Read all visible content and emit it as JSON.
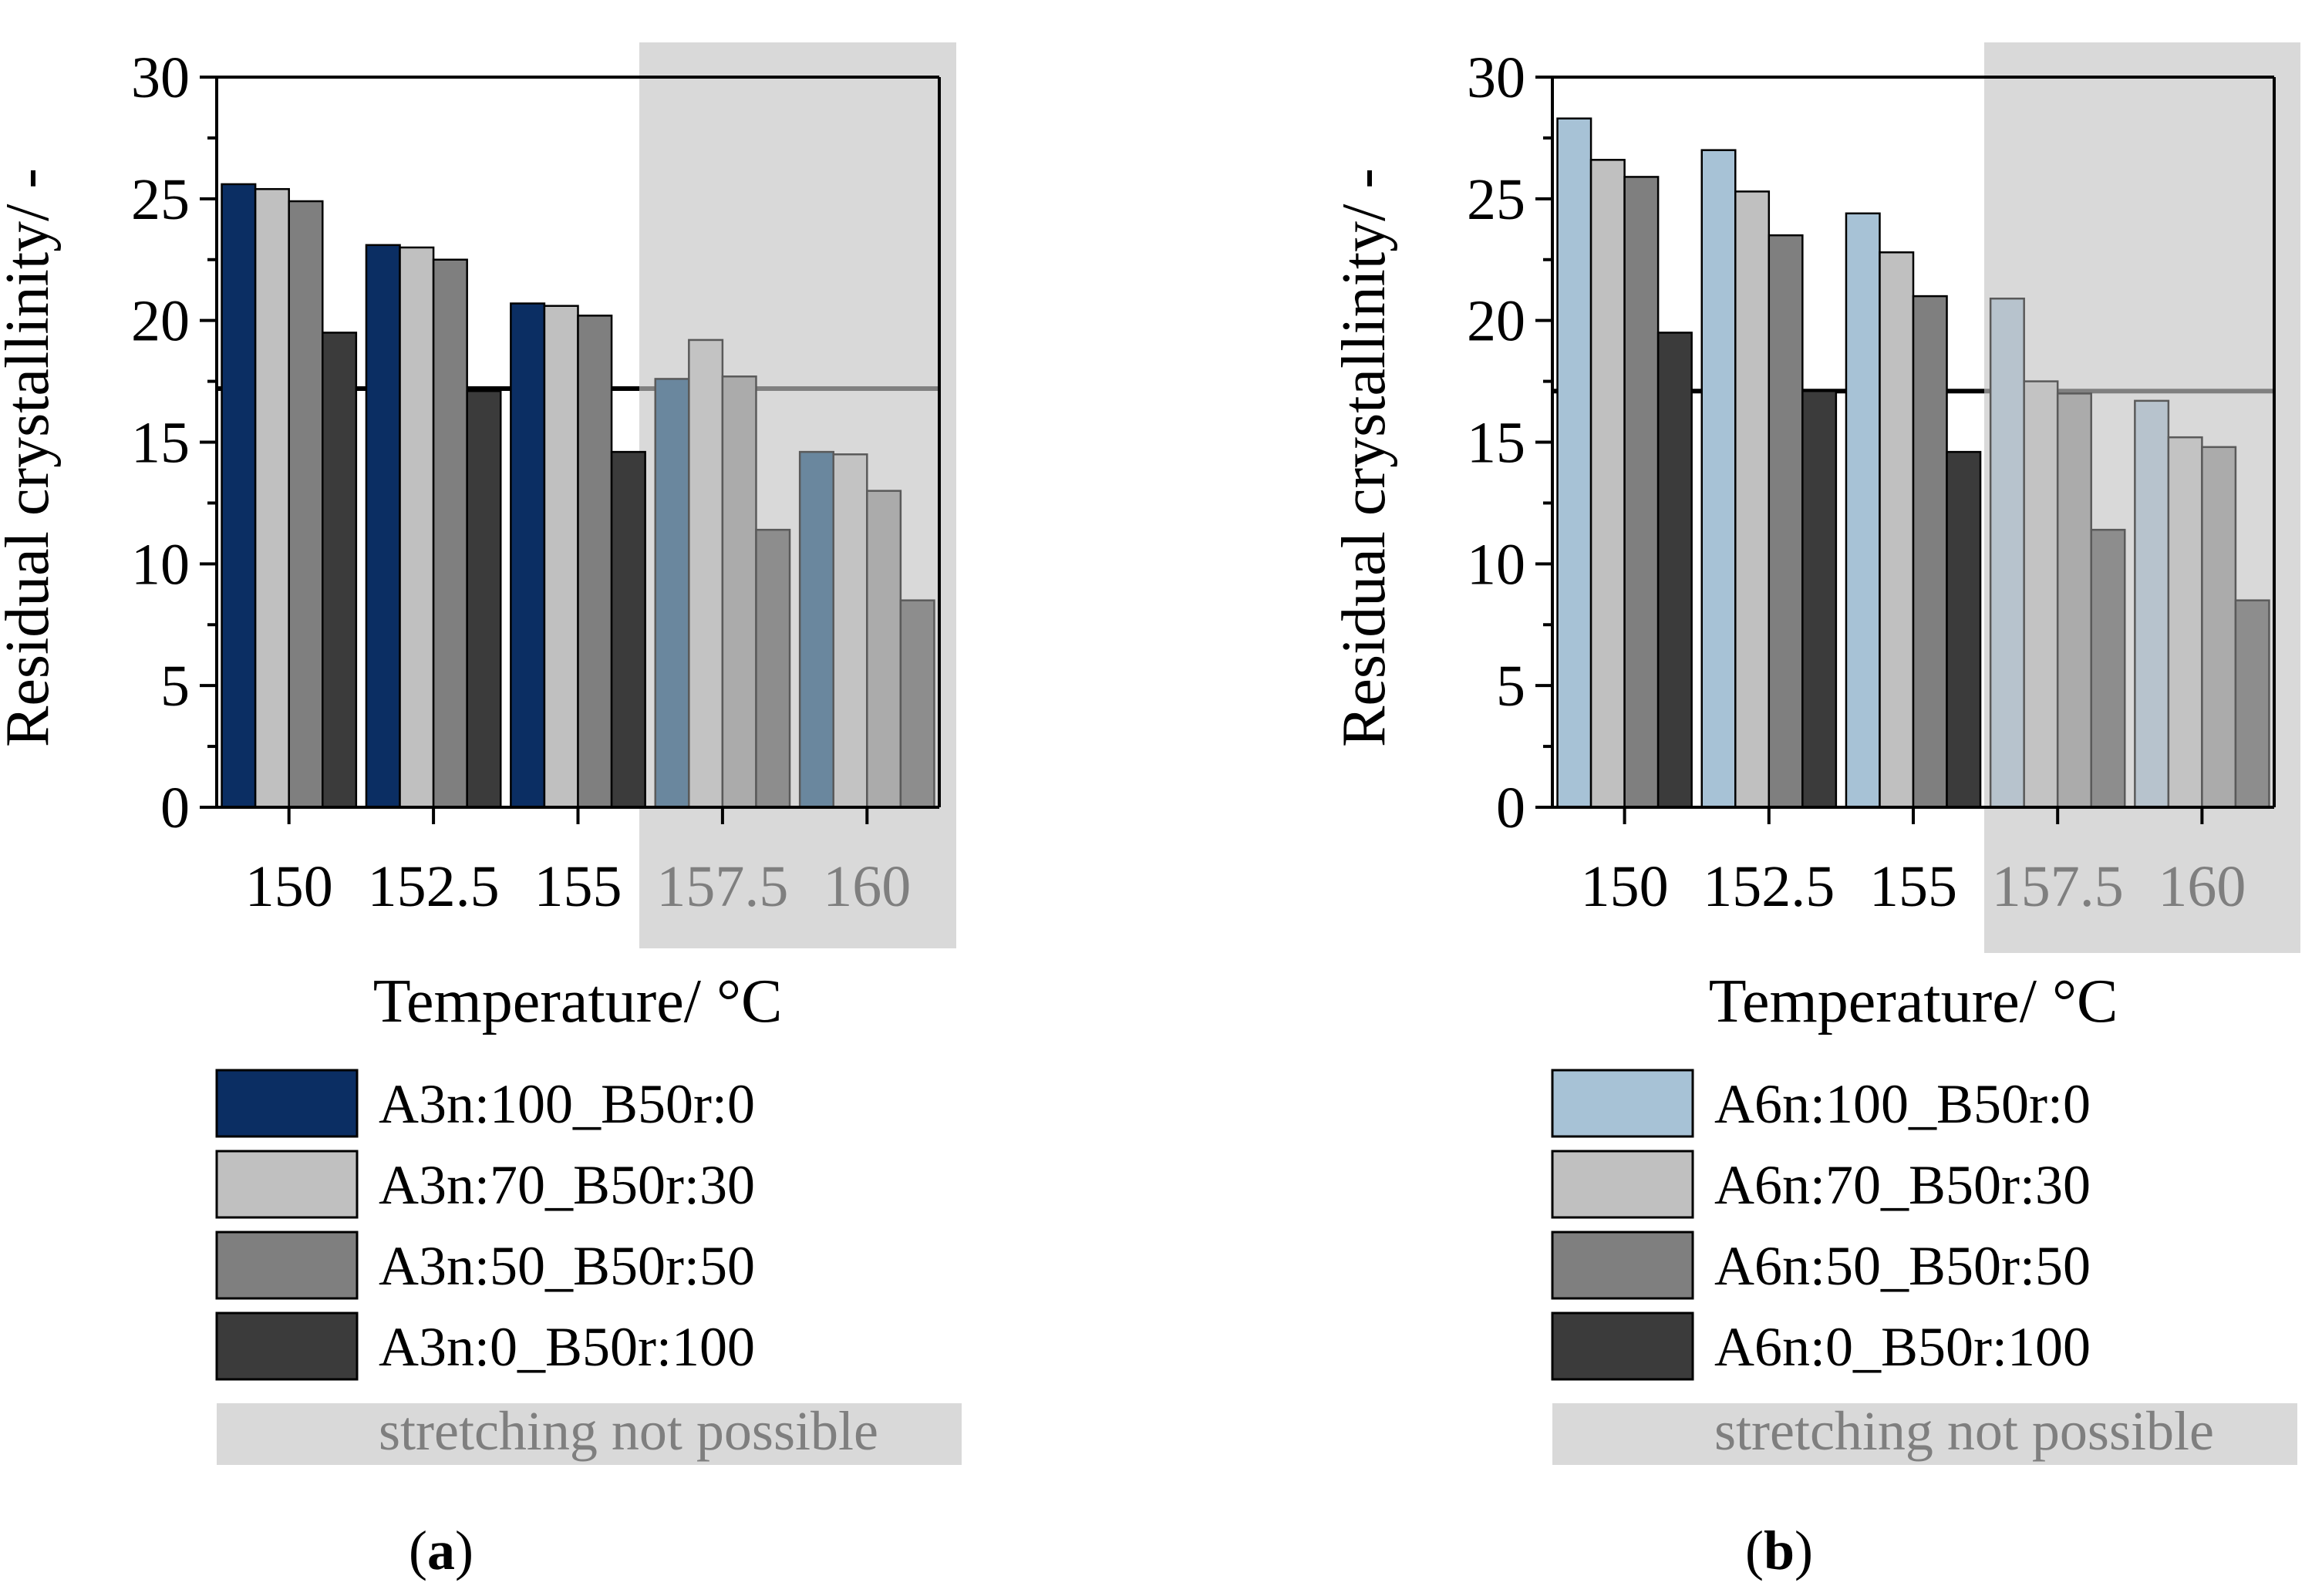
{
  "chart_data": [
    {
      "type": "bar",
      "panel_label": "(a)",
      "panel_letter": "a",
      "xlabel": "Temperature/ °C",
      "ylabel": "Residual crystallinity/ -",
      "ylim": [
        0,
        30
      ],
      "yticks": [
        0,
        5,
        10,
        15,
        20,
        25,
        30
      ],
      "categories": [
        "150",
        "152.5",
        "155",
        "157.5",
        "160"
      ],
      "shaded_from_index": 3,
      "shaded_legend": "stretching not possible",
      "reference_line": 17.2,
      "series": [
        {
          "name": "A3n:100_B50r:0",
          "color": "#0b2e63",
          "shaded_color": "#6a879e",
          "values": [
            25.6,
            23.1,
            20.7,
            17.6,
            14.6
          ]
        },
        {
          "name": "A3n:70_B50r:30",
          "color": "#c0c0c0",
          "shaded_color": "#c3c3c3",
          "values": [
            25.4,
            23.0,
            20.6,
            19.2,
            14.5
          ]
        },
        {
          "name": "A3n:50_B50r:50",
          "color": "#7f7f7f",
          "shaded_color": "#ababab",
          "values": [
            24.9,
            22.5,
            20.2,
            17.7,
            13.0
          ]
        },
        {
          "name": "A3n:0_B50r:100",
          "color": "#3b3b3b",
          "shaded_color": "#8d8d8d",
          "values": [
            19.5,
            17.1,
            14.6,
            11.4,
            8.5
          ]
        }
      ]
    },
    {
      "type": "bar",
      "panel_label": "(b)",
      "panel_letter": "b",
      "xlabel": "Temperature/ °C",
      "ylabel": "Residual crystallinity/ -",
      "ylim": [
        0,
        30
      ],
      "yticks": [
        0,
        5,
        10,
        15,
        20,
        25,
        30
      ],
      "categories": [
        "150",
        "152.5",
        "155",
        "157.5",
        "160"
      ],
      "shaded_from_index": 3,
      "shaded_legend": "stretching not possible",
      "reference_line": 17.1,
      "series": [
        {
          "name": "A6n:100_B50r:0",
          "color": "#a7c2d6",
          "shaded_color": "#b7c3cd",
          "values": [
            28.3,
            27.0,
            24.4,
            20.9,
            16.7
          ]
        },
        {
          "name": "A6n:70_B50r:30",
          "color": "#c0c0c0",
          "shaded_color": "#c3c3c3",
          "values": [
            26.6,
            25.3,
            22.8,
            17.5,
            15.2
          ]
        },
        {
          "name": "A6n:50_B50r:50",
          "color": "#7f7f7f",
          "shaded_color": "#ababab",
          "values": [
            25.9,
            23.5,
            21.0,
            17.0,
            14.8
          ]
        },
        {
          "name": "A6n:0_B50r:100",
          "color": "#3b3b3b",
          "shaded_color": "#8d8d8d",
          "values": [
            19.5,
            17.1,
            14.6,
            11.4,
            8.5
          ]
        }
      ]
    }
  ],
  "colors": {
    "shade_region": "#d9d9d9",
    "shaded_tick_text": "#7f7f7f",
    "axis": "#000000",
    "reference_line_left": "#000000",
    "reference_line_right": "#808080",
    "bar_stroke": "#000000"
  }
}
